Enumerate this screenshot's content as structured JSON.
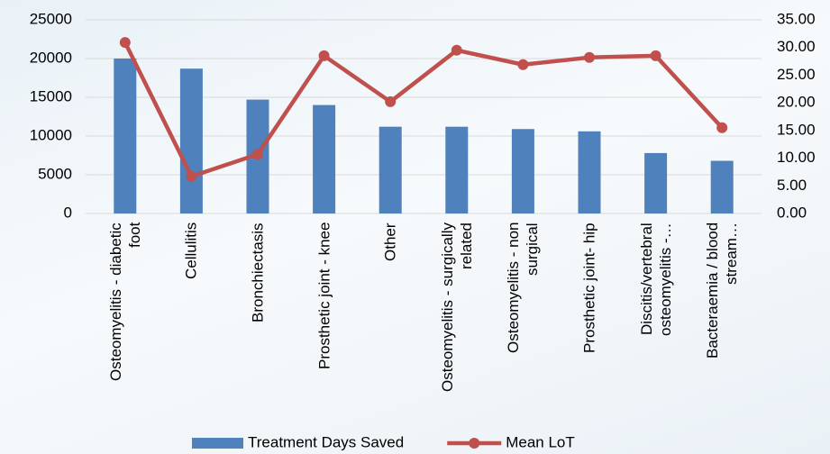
{
  "chart_data": {
    "type": "bar_line",
    "categories": [
      "Osteomyelitis - diabetic foot",
      "Cellulitis",
      "Bronchiectasis",
      "Prosthetic joint - knee",
      "Other",
      "Osteomyelitis - surgically related",
      "Osteomyelitis - non surgical",
      "Prosthetic joint- hip",
      "Discitis/vertebral osteomyelitis -…",
      "Bacteraemia / blood stream…"
    ],
    "series": [
      {
        "name": "Treatment Days Saved",
        "type": "bar",
        "color": "#4f81bd",
        "axis": "y",
        "values": [
          20000,
          18700,
          14700,
          14000,
          11200,
          11200,
          10900,
          10600,
          7800,
          6800
        ]
      },
      {
        "name": "Mean LoT",
        "type": "line",
        "color": "#c0504d",
        "axis": "y2",
        "values": [
          30.9,
          6.7,
          10.7,
          28.5,
          20.2,
          29.5,
          26.9,
          28.2,
          28.5,
          15.5
        ]
      }
    ],
    "ylim": [
      0,
      25000
    ],
    "yticks": [
      0,
      5000,
      10000,
      15000,
      20000,
      25000
    ],
    "y2lim": [
      0,
      35
    ],
    "y2ticks": [
      {
        "value": 0,
        "label": "0.00"
      },
      {
        "value": 5,
        "label": "5.00"
      },
      {
        "value": 10,
        "label": "10.00"
      },
      {
        "value": 15,
        "label": "15.00"
      },
      {
        "value": 20,
        "label": "20.00"
      },
      {
        "value": 25,
        "label": "25.00"
      },
      {
        "value": 30,
        "label": "30.00"
      },
      {
        "value": 35,
        "label": "35.00"
      }
    ],
    "grid": true,
    "legend": "bottom"
  }
}
